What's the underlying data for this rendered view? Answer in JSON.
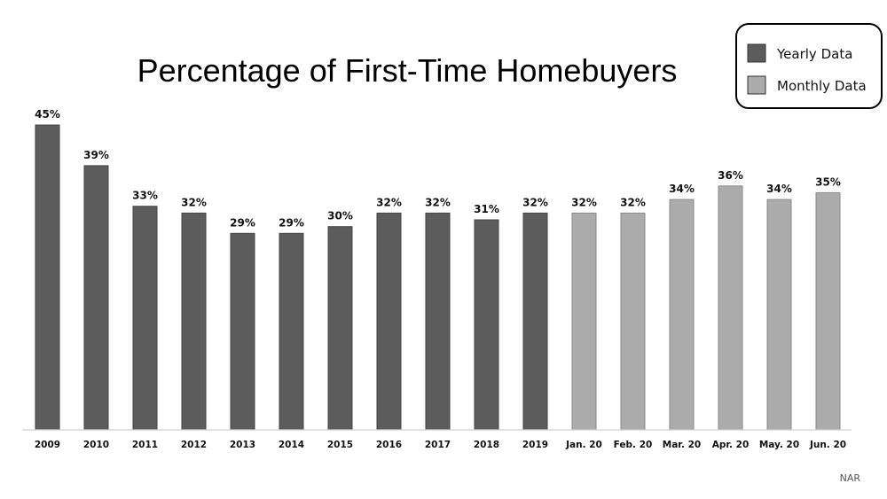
{
  "chart_data": {
    "type": "bar",
    "title": "Percentage of First-Time Homebuyers",
    "xlabel": "",
    "ylabel": "",
    "ylim": [
      0,
      45
    ],
    "grid": false,
    "legend_position": "top-right",
    "categories": [
      "2009",
      "2010",
      "2011",
      "2012",
      "2013",
      "2014",
      "2015",
      "2016",
      "2017",
      "2018",
      "2019",
      "Jan. 20",
      "Feb. 20",
      "Mar. 20",
      "Apr. 20",
      "May. 20",
      "Jun. 20"
    ],
    "values": [
      45,
      39,
      33,
      32,
      29,
      29,
      30,
      32,
      32,
      31,
      32,
      32,
      32,
      34,
      36,
      34,
      35
    ],
    "value_labels": [
      "45%",
      "39%",
      "33%",
      "32%",
      "29%",
      "29%",
      "30%",
      "32%",
      "32%",
      "31%",
      "32%",
      "32%",
      "32%",
      "34%",
      "36%",
      "34%",
      "35%"
    ],
    "series_of_category": [
      "yearly",
      "yearly",
      "yearly",
      "yearly",
      "yearly",
      "yearly",
      "yearly",
      "yearly",
      "yearly",
      "yearly",
      "yearly",
      "monthly",
      "monthly",
      "monthly",
      "monthly",
      "monthly",
      "monthly"
    ],
    "series": [
      {
        "key": "yearly",
        "name": "Yearly Data",
        "color": "#5c5c5c"
      },
      {
        "key": "monthly",
        "name": "Monthly Data",
        "color": "#ababab"
      }
    ],
    "source": "NAR"
  }
}
